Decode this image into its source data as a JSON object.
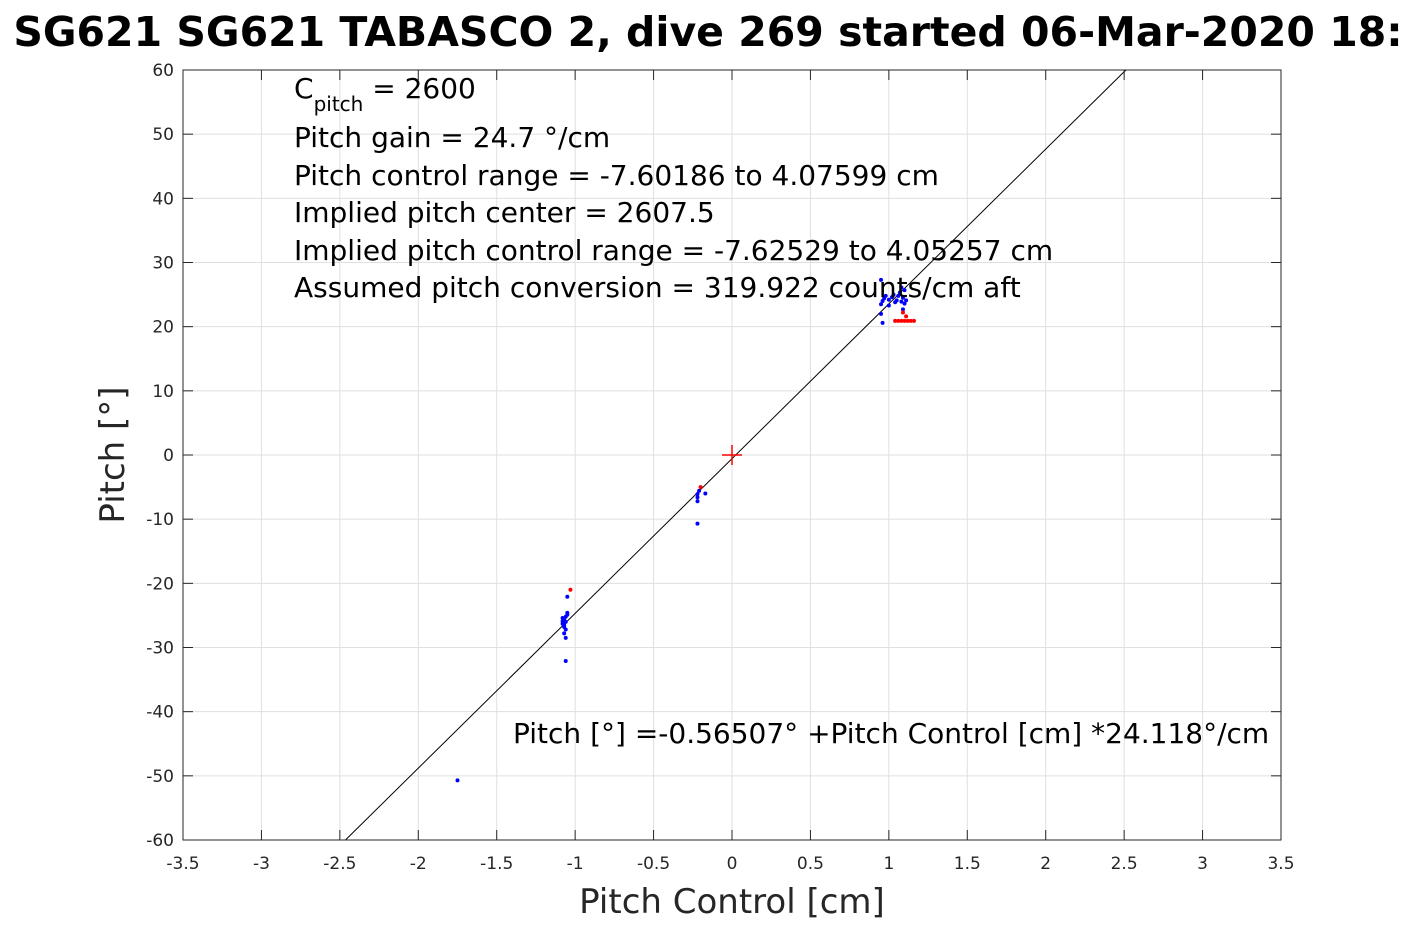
{
  "chart_data": {
    "type": "scatter",
    "title": "SG621 SG621 TABASCO 2, dive 269 started 06-Mar-2020 18:",
    "xlabel": "Pitch Control [cm]",
    "ylabel": "Pitch [°]",
    "xlim": [
      -3.5,
      3.5
    ],
    "ylim": [
      -60,
      60
    ],
    "xticks": [
      "-3.5",
      "-3",
      "-2.5",
      "-2",
      "-1.5",
      "-1",
      "-0.5",
      "0",
      "0.5",
      "1",
      "1.5",
      "2",
      "2.5",
      "3",
      "3.5"
    ],
    "yticks": [
      "60",
      "50",
      "40",
      "30",
      "20",
      "10",
      "0",
      "-10",
      "-20",
      "-30",
      "-40",
      "-50",
      "-60"
    ],
    "grid": true,
    "annotations": {
      "c_pitch_main": "C",
      "c_pitch_sub": "pitch",
      "c_pitch_value": " = 2600",
      "pitch_gain": "Pitch gain = 24.7 °/cm",
      "control_range": "Pitch control range = -7.60186 to 4.07599 cm",
      "implied_center": "Implied pitch center = 2607.5",
      "implied_range": "Implied pitch control range = -7.62529 to 4.05257 cm",
      "conversion": "Assumed pitch conversion = 319.922 counts/cm aft",
      "fit_equation": "Pitch [°] =-0.56507° +Pitch Control [cm] *24.118°/cm"
    },
    "fit_line": {
      "intercept": -0.56507,
      "slope": 24.118,
      "color": "#000000"
    },
    "center_marker": {
      "x": 0,
      "y": 0,
      "color": "#ff0000"
    },
    "series": [
      {
        "color": "#0000ff",
        "points": [
          [
            -1.75,
            -50.7
          ],
          [
            -1.06,
            -32.1
          ],
          [
            -1.06,
            -28.5
          ],
          [
            -1.07,
            -27.8
          ],
          [
            -1.06,
            -27.2
          ],
          [
            -1.07,
            -26.8
          ],
          [
            -1.08,
            -26.3
          ],
          [
            -1.06,
            -26.0
          ],
          [
            -1.07,
            -25.7
          ],
          [
            -1.08,
            -25.4
          ],
          [
            -1.06,
            -25.2
          ],
          [
            -1.05,
            -24.9
          ],
          [
            -1.05,
            -24.6
          ],
          [
            -1.07,
            -26.5
          ],
          [
            -1.08,
            -25.9
          ],
          [
            -1.05,
            -22.1
          ],
          [
            -0.22,
            -10.7
          ],
          [
            -0.22,
            -7.2
          ],
          [
            -0.22,
            -6.6
          ],
          [
            -0.22,
            -6.1
          ],
          [
            -0.21,
            -5.6
          ],
          [
            -0.17,
            -6.0
          ],
          [
            0.95,
            22.0
          ],
          [
            0.95,
            23.5
          ],
          [
            0.96,
            24.0
          ],
          [
            0.97,
            24.4
          ],
          [
            0.98,
            24.8
          ],
          [
            1.0,
            24.2
          ],
          [
            1.02,
            24.6
          ],
          [
            1.03,
            25.0
          ],
          [
            1.05,
            24.1
          ],
          [
            1.06,
            24.8
          ],
          [
            1.07,
            25.3
          ],
          [
            1.08,
            23.9
          ],
          [
            1.09,
            24.5
          ],
          [
            1.1,
            25.7
          ],
          [
            1.1,
            23.6
          ],
          [
            1.11,
            24.1
          ],
          [
            0.96,
            20.6
          ],
          [
            0.95,
            27.3
          ],
          [
            1.08,
            26.1
          ],
          [
            1.09,
            22.7
          ],
          [
            1.04,
            23.8
          ],
          [
            1.0,
            23.3
          ]
        ]
      },
      {
        "color": "#ff0000",
        "points": [
          [
            -1.03,
            -21.0
          ],
          [
            -0.2,
            -5.0
          ],
          [
            1.04,
            20.9
          ],
          [
            1.06,
            20.9
          ],
          [
            1.08,
            20.9
          ],
          [
            1.1,
            20.9
          ],
          [
            1.12,
            20.9
          ],
          [
            1.14,
            20.9
          ],
          [
            1.16,
            20.9
          ],
          [
            1.09,
            22.2
          ],
          [
            1.11,
            21.6
          ]
        ]
      }
    ]
  }
}
